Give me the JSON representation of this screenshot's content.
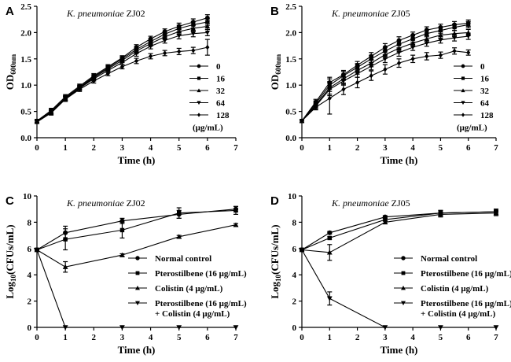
{
  "chart_data": [
    {
      "panel": "A",
      "type": "line",
      "title_organism": "K. pneumoniae",
      "title_strain": " ZJ02",
      "xlabel": "Time (h)",
      "ylabel_main": "OD",
      "ylabel_sub": "600nm",
      "xlim": [
        0,
        7
      ],
      "ylim": [
        0,
        2.5
      ],
      "xticks": [
        0,
        1,
        2,
        3,
        4,
        5,
        6,
        7
      ],
      "yticks": [
        0,
        0.5,
        1.0,
        1.5,
        2.0,
        2.5
      ],
      "ytick_labels": [
        "0.0",
        "0.5",
        "1.0",
        "1.5",
        "2.0",
        "2.5"
      ],
      "legend_unit": "(μg/mL)",
      "x": [
        0,
        0.5,
        1,
        1.5,
        2,
        2.5,
        3,
        3.5,
        4,
        4.5,
        5,
        5.5,
        6
      ],
      "series": [
        {
          "name": "0",
          "marker": "circle",
          "values": [
            0.32,
            0.52,
            0.78,
            0.98,
            1.18,
            1.35,
            1.52,
            1.72,
            1.88,
            2.02,
            2.12,
            2.2,
            2.28
          ],
          "err": [
            0.03,
            0.04,
            0.04,
            0.04,
            0.04,
            0.04,
            0.04,
            0.05,
            0.05,
            0.05,
            0.06,
            0.06,
            0.06
          ]
        },
        {
          "name": "16",
          "marker": "square",
          "values": [
            0.31,
            0.5,
            0.76,
            0.96,
            1.16,
            1.33,
            1.5,
            1.68,
            1.83,
            1.97,
            2.08,
            2.15,
            2.2
          ],
          "err": [
            0.03,
            0.04,
            0.04,
            0.04,
            0.04,
            0.04,
            0.04,
            0.05,
            0.05,
            0.05,
            0.06,
            0.06,
            0.06
          ]
        },
        {
          "name": "32",
          "marker": "triangle",
          "values": [
            0.31,
            0.49,
            0.75,
            0.95,
            1.14,
            1.31,
            1.47,
            1.65,
            1.79,
            1.92,
            2.02,
            2.08,
            2.12
          ],
          "err": [
            0.03,
            0.04,
            0.04,
            0.04,
            0.04,
            0.04,
            0.04,
            0.05,
            0.05,
            0.05,
            0.06,
            0.06,
            0.06
          ]
        },
        {
          "name": "64",
          "marker": "tri_down",
          "values": [
            0.3,
            0.48,
            0.74,
            0.94,
            1.12,
            1.28,
            1.43,
            1.6,
            1.74,
            1.85,
            1.94,
            1.98,
            2.0
          ],
          "err": [
            0.03,
            0.04,
            0.04,
            0.04,
            0.04,
            0.04,
            0.04,
            0.05,
            0.05,
            0.05,
            0.06,
            0.06,
            0.06
          ]
        },
        {
          "name": "128",
          "marker": "diamond",
          "values": [
            0.3,
            0.47,
            0.73,
            0.92,
            1.08,
            1.22,
            1.35,
            1.46,
            1.55,
            1.61,
            1.64,
            1.66,
            1.72
          ],
          "err": [
            0.03,
            0.04,
            0.04,
            0.04,
            0.04,
            0.04,
            0.04,
            0.05,
            0.05,
            0.05,
            0.06,
            0.06,
            0.15
          ]
        }
      ]
    },
    {
      "panel": "B",
      "type": "line",
      "title_organism": "K. pneumoniae",
      "title_strain": " ZJ05",
      "xlabel": "Time (h)",
      "ylabel_main": "OD",
      "ylabel_sub": "600nm",
      "xlim": [
        0,
        7
      ],
      "ylim": [
        0,
        2.5
      ],
      "xticks": [
        0,
        1,
        2,
        3,
        4,
        5,
        6,
        7
      ],
      "yticks": [
        0,
        0.5,
        1.0,
        1.5,
        2.0,
        2.5
      ],
      "ytick_labels": [
        "0.0",
        "0.5",
        "1.0",
        "1.5",
        "2.0",
        "2.5"
      ],
      "legend_unit": "(μg/mL)",
      "x": [
        0,
        0.5,
        1,
        1.5,
        2,
        2.5,
        3,
        3.5,
        4,
        4.5,
        5,
        5.5,
        6
      ],
      "series": [
        {
          "name": "0",
          "marker": "circle",
          "values": [
            0.32,
            0.68,
            1.05,
            1.2,
            1.38,
            1.55,
            1.72,
            1.85,
            1.95,
            2.05,
            2.1,
            2.15,
            2.18
          ],
          "err": [
            0.03,
            0.05,
            0.1,
            0.08,
            0.07,
            0.07,
            0.07,
            0.07,
            0.06,
            0.06,
            0.06,
            0.06,
            0.06
          ]
        },
        {
          "name": "16",
          "marker": "square",
          "values": [
            0.32,
            0.65,
            1.0,
            1.18,
            1.34,
            1.5,
            1.65,
            1.78,
            1.88,
            1.98,
            2.04,
            2.1,
            2.15
          ],
          "err": [
            0.03,
            0.05,
            0.12,
            0.08,
            0.07,
            0.07,
            0.07,
            0.07,
            0.06,
            0.06,
            0.06,
            0.06,
            0.06
          ]
        },
        {
          "name": "32",
          "marker": "triangle",
          "values": [
            0.32,
            0.62,
            0.95,
            1.12,
            1.28,
            1.42,
            1.58,
            1.7,
            1.8,
            1.88,
            1.95,
            1.98,
            2.0
          ],
          "err": [
            0.03,
            0.05,
            0.12,
            0.08,
            0.07,
            0.07,
            0.07,
            0.07,
            0.06,
            0.06,
            0.06,
            0.06,
            0.06
          ]
        },
        {
          "name": "64",
          "marker": "tri_down",
          "values": [
            0.32,
            0.6,
            0.92,
            1.08,
            1.22,
            1.36,
            1.5,
            1.62,
            1.72,
            1.8,
            1.86,
            1.9,
            1.93
          ],
          "err": [
            0.03,
            0.05,
            0.12,
            0.08,
            0.07,
            0.07,
            0.07,
            0.07,
            0.06,
            0.06,
            0.06,
            0.06,
            0.06
          ]
        },
        {
          "name": "128",
          "marker": "diamond",
          "values": [
            0.32,
            0.58,
            0.75,
            0.92,
            1.05,
            1.18,
            1.3,
            1.42,
            1.5,
            1.55,
            1.57,
            1.65,
            1.62
          ],
          "err": [
            0.03,
            0.05,
            0.3,
            0.1,
            0.1,
            0.09,
            0.09,
            0.08,
            0.07,
            0.07,
            0.06,
            0.06,
            0.05
          ]
        }
      ]
    },
    {
      "panel": "C",
      "type": "line",
      "title_organism": "K. pneumoniae",
      "title_strain": " ZJ02",
      "xlabel": "Time (h)",
      "ylabel_main": "Log",
      "ylabel_sub": "10",
      "ylabel_tail": "(CFUs/mL)",
      "xlim": [
        0,
        7
      ],
      "ylim": [
        0,
        10
      ],
      "xticks": [
        0,
        1,
        2,
        3,
        4,
        5,
        6,
        7
      ],
      "yticks": [
        0,
        2,
        4,
        6,
        8,
        10
      ],
      "ytick_labels": [
        "0",
        "2",
        "4",
        "6",
        "8",
        "10"
      ],
      "x": [
        0,
        1,
        3,
        5,
        7
      ],
      "series": [
        {
          "name": "Normal control",
          "marker": "circle",
          "values": [
            5.9,
            7.2,
            8.1,
            8.6,
            9.0
          ],
          "err": [
            0.1,
            0.5,
            0.2,
            0.3,
            0.2
          ]
        },
        {
          "name": "Pterostilbene (16 μg/mL)",
          "marker": "square",
          "values": [
            5.9,
            6.7,
            7.4,
            8.7,
            8.9
          ],
          "err": [
            0.1,
            0.8,
            0.6,
            0.4,
            0.3
          ]
        },
        {
          "name": "Colistin (4 μg/mL)",
          "marker": "triangle",
          "values": [
            5.9,
            4.6,
            5.5,
            6.9,
            7.8
          ],
          "err": [
            0.1,
            0.4,
            0.1,
            0.1,
            0.1
          ]
        },
        {
          "name": "Pterostilbene (16 μg/mL)",
          "name2": "+ Colistin (4 μg/mL)",
          "marker": "tri_down",
          "values": [
            5.9,
            0,
            0,
            0,
            0
          ],
          "err": [
            0.1,
            0,
            0,
            0,
            0
          ]
        }
      ]
    },
    {
      "panel": "D",
      "type": "line",
      "title_organism": "K. pneumoniae",
      "title_strain": " ZJ05",
      "xlabel": "Time (h)",
      "ylabel_main": "Log",
      "ylabel_sub": "10",
      "ylabel_tail": "(CFUs/mL)",
      "xlim": [
        0,
        7
      ],
      "ylim": [
        0,
        10
      ],
      "xticks": [
        0,
        1,
        2,
        3,
        4,
        5,
        6,
        7
      ],
      "yticks": [
        0,
        2,
        4,
        6,
        8,
        10
      ],
      "ytick_labels": [
        "0",
        "2",
        "4",
        "6",
        "8",
        "10"
      ],
      "x": [
        0,
        1,
        3,
        5,
        7
      ],
      "series": [
        {
          "name": "Normal control",
          "marker": "circle",
          "values": [
            5.9,
            7.2,
            8.4,
            8.7,
            8.8
          ],
          "err": [
            0.1,
            0.1,
            0.1,
            0.2,
            0.2
          ]
        },
        {
          "name": "Pterostilbene (16 μg/mL)",
          "marker": "square",
          "values": [
            5.9,
            6.8,
            8.2,
            8.7,
            8.8
          ],
          "err": [
            0.1,
            0.1,
            0.1,
            0.2,
            0.2
          ]
        },
        {
          "name": "Colistin (4 μg/mL)",
          "marker": "triangle",
          "values": [
            5.9,
            5.7,
            8.0,
            8.6,
            8.7
          ],
          "err": [
            0.1,
            0.6,
            0.1,
            0.2,
            0.2
          ]
        },
        {
          "name": "Pterostilbene (16 μg/mL)",
          "name2": "+ Colistin (4 μg/mL)",
          "marker": "tri_down",
          "values": [
            5.9,
            2.2,
            0,
            0,
            0
          ],
          "err": [
            0.1,
            0.5,
            0,
            0,
            0
          ]
        }
      ]
    }
  ]
}
